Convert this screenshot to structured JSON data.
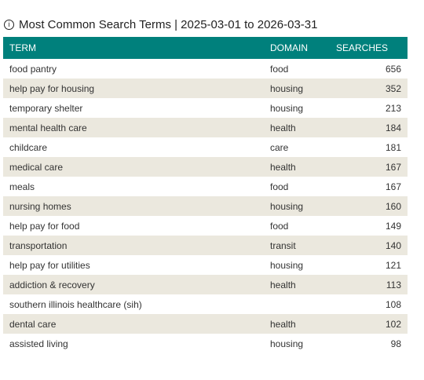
{
  "header": {
    "title": "Most Common Search Terms | 2025-03-01 to 2026-03-31"
  },
  "table": {
    "columns": [
      "TERM",
      "DOMAIN",
      "SEARCHES"
    ],
    "rows": [
      [
        "food pantry",
        "food",
        656
      ],
      [
        "help pay for housing",
        "housing",
        352
      ],
      [
        "temporary shelter",
        "housing",
        213
      ],
      [
        "mental health care",
        "health",
        184
      ],
      [
        "childcare",
        "care",
        181
      ],
      [
        "medical care",
        "health",
        167
      ],
      [
        "meals",
        "food",
        167
      ],
      [
        "nursing homes",
        "housing",
        160
      ],
      [
        "help pay for food",
        "food",
        149
      ],
      [
        "transportation",
        "transit",
        140
      ],
      [
        "help pay for utilities",
        "housing",
        121
      ],
      [
        "addiction & recovery",
        "health",
        113
      ],
      [
        "southern illinois healthcare (sih)",
        null,
        108
      ],
      [
        "dental care",
        "health",
        102
      ],
      [
        "assisted living",
        "housing",
        98
      ]
    ]
  }
}
